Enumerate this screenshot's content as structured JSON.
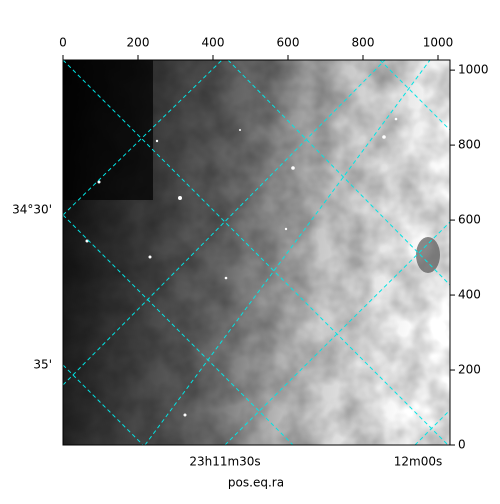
{
  "chart_data": {
    "type": "image",
    "xlabel": "pos.eq.ra",
    "xlim": [
      0,
      1032
    ],
    "ylim": [
      0,
      1027
    ],
    "xticks": [
      0,
      200,
      400,
      600,
      800,
      1000
    ],
    "yticks": [
      0,
      200,
      400,
      600,
      800,
      1000
    ],
    "ra_tick_labels": [
      "23h11m30s",
      "12m00s"
    ],
    "dec_tick_labels": [
      "34°30'",
      "35'"
    ],
    "grid": true,
    "grid_color": "#00e5e5",
    "colormap": "gray"
  }
}
